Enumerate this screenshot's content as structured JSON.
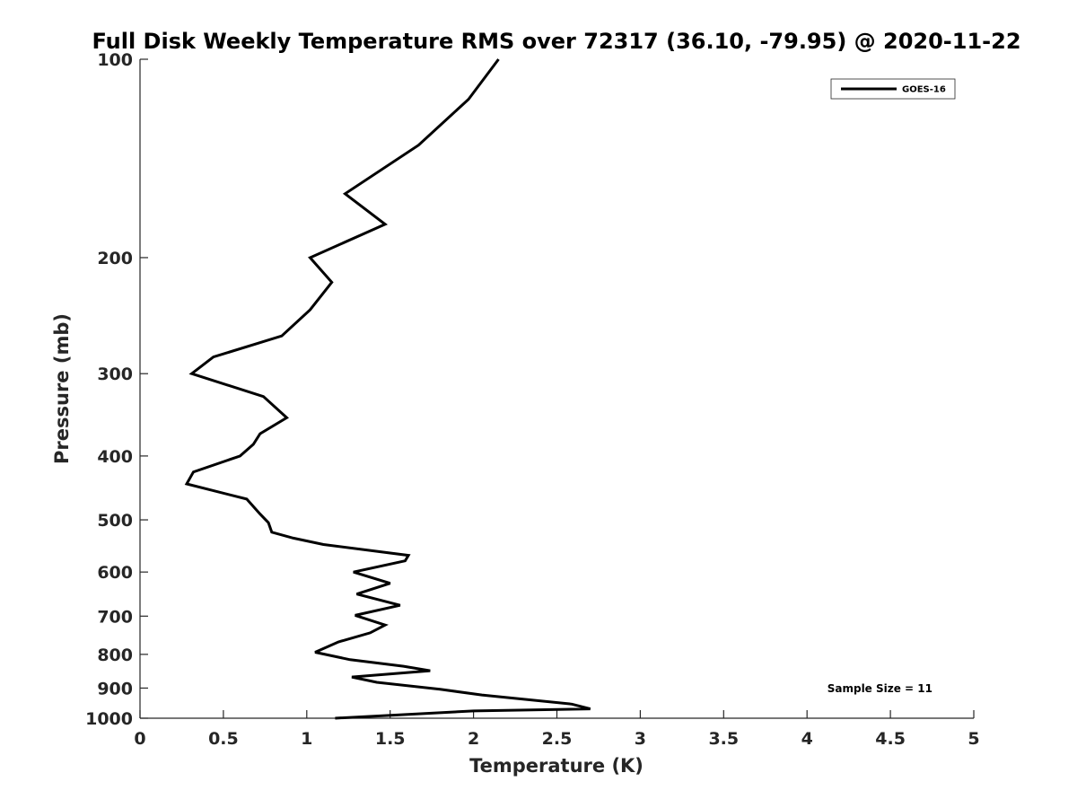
{
  "chart_data": {
    "type": "line",
    "title": "Full Disk Weekly Temperature RMS over 72317 (36.10, -79.95) @ 2020-11-22",
    "xlabel": "Temperature (K)",
    "ylabel": "Pressure (mb)",
    "xlim": [
      0,
      5
    ],
    "ylim": [
      100,
      1000
    ],
    "y_scale": "log",
    "y_reversed": true,
    "x_ticks": [
      0,
      0.5,
      1,
      1.5,
      2,
      2.5,
      3,
      3.5,
      4,
      4.5,
      5
    ],
    "x_tick_labels": [
      "0",
      "0.5",
      "1",
      "1.5",
      "2",
      "2.5",
      "3",
      "3.5",
      "4",
      "4.5",
      "5"
    ],
    "y_ticks": [
      100,
      200,
      300,
      400,
      500,
      600,
      700,
      800,
      900,
      1000
    ],
    "y_tick_labels": [
      "100",
      "200",
      "300",
      "400",
      "500",
      "600",
      "700",
      "800",
      "900",
      "1000"
    ],
    "grid": false,
    "legend_position": "top-right",
    "colors": {
      "line": "#000000",
      "axis": "#262626"
    },
    "series": [
      {
        "name": "GOES-16",
        "x": [
          2.15,
          1.97,
          1.67,
          1.23,
          1.47,
          1.02,
          1.15,
          1.02,
          0.85,
          0.44,
          0.31,
          0.74,
          0.88,
          0.72,
          0.68,
          0.6,
          0.32,
          0.28,
          0.64,
          0.72,
          0.77,
          0.79,
          0.92,
          1.1,
          1.61,
          1.59,
          1.28,
          1.5,
          1.3,
          1.56,
          1.29,
          1.47,
          1.38,
          1.19,
          1.05,
          1.26,
          1.58,
          1.74,
          1.27,
          1.42,
          1.8,
          2.05,
          2.59,
          2.7,
          2.0,
          1.17
        ],
        "y": [
          100,
          115,
          135,
          160,
          178,
          200,
          218,
          240,
          263,
          283,
          300,
          325,
          350,
          370,
          384,
          400,
          423,
          441,
          465,
          490,
          505,
          522,
          533,
          545,
          566,
          577,
          600,
          624,
          648,
          674,
          698,
          722,
          742,
          766,
          794,
          815,
          834,
          847,
          866,
          882,
          904,
          922,
          952,
          968,
          975,
          1000
        ]
      }
    ],
    "annotations": [
      "Sample Size = 11"
    ]
  }
}
